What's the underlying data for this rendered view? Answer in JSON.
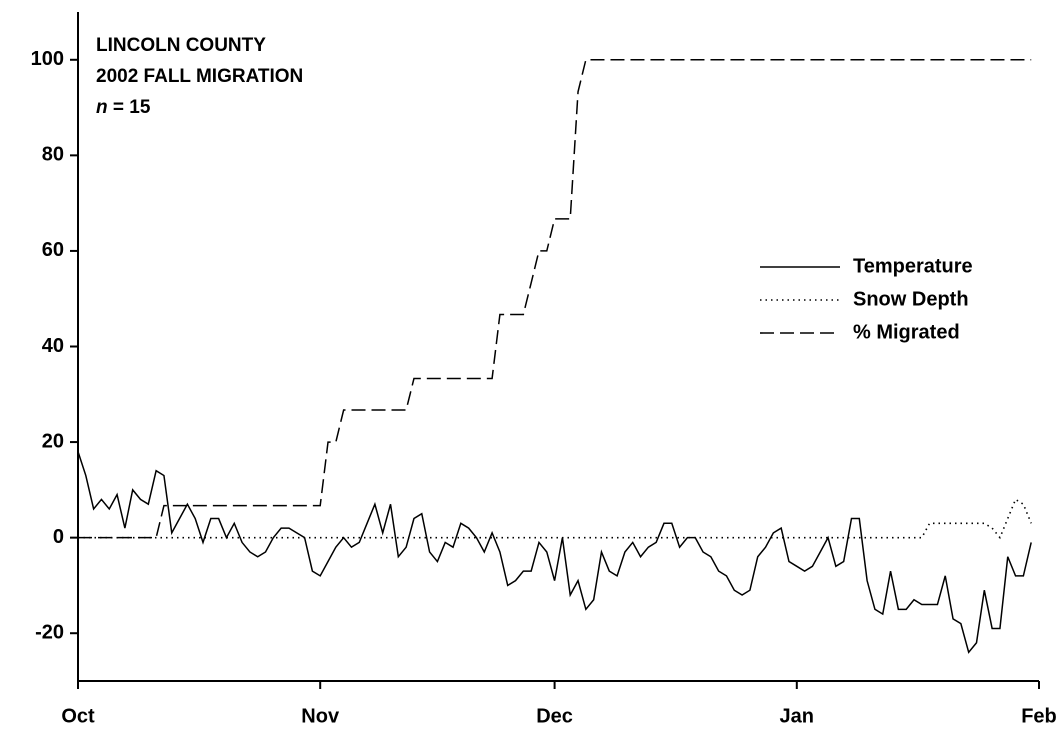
{
  "chart_data": {
    "type": "line",
    "title_lines": [
      "LINCOLN COUNTY",
      "2002 FALL MIGRATION"
    ],
    "sample_size": {
      "symbol": "n",
      "text": "= 15"
    },
    "x": [
      0,
      1,
      2,
      3,
      4,
      5,
      6,
      7,
      8,
      9,
      10,
      11,
      12,
      13,
      14,
      15,
      16,
      17,
      18,
      19,
      20,
      21,
      22,
      23,
      24,
      25,
      26,
      27,
      28,
      29,
      30,
      31,
      32,
      33,
      34,
      35,
      36,
      37,
      38,
      39,
      40,
      41,
      42,
      43,
      44,
      45,
      46,
      47,
      48,
      49,
      50,
      51,
      52,
      53,
      54,
      55,
      56,
      57,
      58,
      59,
      60,
      61,
      62,
      63,
      64,
      65,
      66,
      67,
      68,
      69,
      70,
      71,
      72,
      73,
      74,
      75,
      76,
      77,
      78,
      79,
      80,
      81,
      82,
      83,
      84,
      85,
      86,
      87,
      88,
      89,
      90,
      91,
      92,
      93,
      94,
      95,
      96,
      97,
      98,
      99,
      100,
      101,
      102,
      103,
      104,
      105,
      106,
      107,
      108,
      109,
      110,
      111,
      112,
      113,
      114,
      115,
      116,
      117,
      118,
      119,
      120,
      121,
      122
    ],
    "series": [
      {
        "name": "Temperature",
        "color": "#000000",
        "dash": "solid",
        "values": [
          18,
          13,
          6,
          8,
          6,
          9,
          2,
          10,
          8,
          7,
          14,
          13,
          1,
          4,
          7,
          4,
          -1,
          4,
          4,
          0,
          3,
          -1,
          -3,
          -4,
          -3,
          0,
          2,
          2,
          1,
          0,
          -7,
          -8,
          -5,
          -2,
          0,
          -2,
          -1,
          3,
          7,
          1,
          7,
          -4,
          -2,
          4,
          5,
          -3,
          -5,
          -1,
          -2,
          3,
          2,
          0,
          -3,
          1,
          -3,
          -10,
          -9,
          -7,
          -7,
          -1,
          -3,
          -9,
          0,
          -12,
          -9,
          -15,
          -13,
          -3,
          -7,
          -8,
          -3,
          -1,
          -4,
          -2,
          -1,
          3,
          3,
          -2,
          0,
          0,
          -3,
          -4,
          -7,
          -8,
          -11,
          -12,
          -11,
          -4,
          -2,
          1,
          2,
          -5,
          -6,
          -7,
          -6,
          -3,
          0,
          -6,
          -5,
          4,
          4,
          -9,
          -15,
          -16,
          -7,
          -15,
          -15,
          -13,
          -14,
          -14,
          -14,
          -8,
          -17,
          -18,
          -24,
          -22,
          -11,
          -19,
          -19,
          -4,
          -8,
          -8,
          -1
        ]
      },
      {
        "name": "Snow Depth",
        "color": "#000000",
        "dash": "dotted",
        "values": [
          0,
          0,
          0,
          0,
          0,
          0,
          0,
          0,
          0,
          0,
          0,
          0,
          0,
          0,
          0,
          0,
          0,
          0,
          0,
          0,
          0,
          0,
          0,
          0,
          0,
          0,
          0,
          0,
          0,
          0,
          0,
          0,
          0,
          0,
          0,
          0,
          0,
          0,
          0,
          0,
          0,
          0,
          0,
          0,
          0,
          0,
          0,
          0,
          0,
          0,
          0,
          0,
          0,
          0,
          0,
          0,
          0,
          0,
          0,
          0,
          0,
          0,
          0,
          0,
          0,
          0,
          0,
          0,
          0,
          0,
          0,
          0,
          0,
          0,
          0,
          0,
          0,
          0,
          0,
          0,
          0,
          0,
          0,
          0,
          0,
          0,
          0,
          0,
          0,
          0,
          0,
          0,
          0,
          0,
          0,
          0,
          0,
          0,
          0,
          0,
          0,
          0,
          0,
          0,
          0,
          0,
          0,
          0,
          0,
          3,
          3,
          3,
          3,
          3,
          3,
          3,
          3,
          2,
          0,
          4,
          8,
          7,
          3
        ]
      },
      {
        "name": "% Migrated",
        "color": "#000000",
        "dash": "dashed",
        "values": [
          0,
          0,
          0,
          0,
          0,
          0,
          0,
          0,
          0,
          0,
          0,
          6.7,
          6.7,
          6.7,
          6.7,
          6.7,
          6.7,
          6.7,
          6.7,
          6.7,
          6.7,
          6.7,
          6.7,
          6.7,
          6.7,
          6.7,
          6.7,
          6.7,
          6.7,
          6.7,
          6.7,
          6.7,
          20,
          20,
          26.7,
          26.7,
          26.7,
          26.7,
          26.7,
          26.7,
          26.7,
          26.7,
          26.7,
          33.3,
          33.3,
          33.3,
          33.3,
          33.3,
          33.3,
          33.3,
          33.3,
          33.3,
          33.3,
          33.3,
          46.7,
          46.7,
          46.7,
          46.7,
          53.3,
          60,
          60,
          66.7,
          66.7,
          66.7,
          93.3,
          100,
          100,
          100,
          100,
          100,
          100,
          100,
          100,
          100,
          100,
          100,
          100,
          100,
          100,
          100,
          100,
          100,
          100,
          100,
          100,
          100,
          100,
          100,
          100,
          100,
          100,
          100,
          100,
          100,
          100,
          100,
          100,
          100,
          100,
          100,
          100,
          100,
          100,
          100,
          100,
          100,
          100,
          100,
          100,
          100,
          100,
          100,
          100,
          100,
          100,
          100,
          100,
          100,
          100,
          100,
          100,
          100,
          100
        ]
      }
    ],
    "xlim": [
      0,
      123
    ],
    "xticks": [
      {
        "value": 0,
        "label": "Oct"
      },
      {
        "value": 31,
        "label": "Nov"
      },
      {
        "value": 61,
        "label": "Dec"
      },
      {
        "value": 92,
        "label": "Jan"
      },
      {
        "value": 123,
        "label": "Feb"
      }
    ],
    "ylim": [
      -30,
      110
    ],
    "yticks": [
      -20,
      0,
      20,
      40,
      60,
      80,
      100
    ],
    "legend": "right",
    "grid": false
  }
}
